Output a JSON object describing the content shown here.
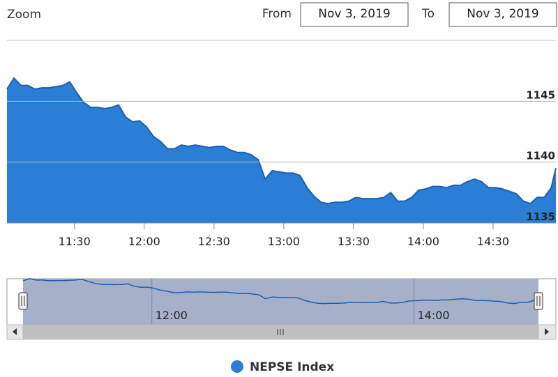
{
  "range_selector": {
    "zoom_label": "Zoom",
    "from_label": "From",
    "from_date": "Nov 3, 2019",
    "to_label": "To",
    "to_date": "Nov 3, 2019"
  },
  "chart_data": {
    "type": "area",
    "x": [
      661,
      664,
      667,
      670,
      673,
      676,
      679,
      682,
      685,
      688,
      691,
      694,
      697,
      700,
      703,
      706,
      709,
      712,
      715,
      718,
      721,
      724,
      727,
      730,
      733,
      736,
      739,
      742,
      745,
      748,
      751,
      754,
      757,
      760,
      763,
      766,
      769,
      772,
      775,
      778,
      781,
      784,
      787,
      790,
      793,
      796,
      799,
      802,
      805,
      808,
      811,
      814,
      817,
      820,
      823,
      826,
      829,
      832,
      835,
      838,
      841,
      844,
      847,
      850,
      853,
      856,
      859,
      862,
      865,
      868,
      871,
      874,
      877,
      880,
      883,
      886,
      889,
      892,
      895,
      897
    ],
    "series": [
      {
        "name": "NEPSE Index",
        "color": "#2a7fd4",
        "line_color": "#1a5fb0",
        "values": [
          1146.0,
          1146.9,
          1146.3,
          1146.3,
          1146.0,
          1146.1,
          1146.1,
          1146.2,
          1146.3,
          1146.6,
          1145.7,
          1144.9,
          1144.5,
          1144.5,
          1144.4,
          1144.5,
          1144.7,
          1143.7,
          1143.3,
          1143.4,
          1142.9,
          1142.1,
          1141.7,
          1141.1,
          1141.1,
          1141.4,
          1141.3,
          1141.4,
          1141.3,
          1141.2,
          1141.3,
          1141.3,
          1141.0,
          1140.8,
          1140.8,
          1140.6,
          1140.2,
          1138.6,
          1139.3,
          1139.2,
          1139.1,
          1139.1,
          1138.9,
          1137.9,
          1137.2,
          1136.7,
          1136.6,
          1136.7,
          1136.7,
          1136.8,
          1137.1,
          1137.0,
          1137.0,
          1137.0,
          1137.1,
          1137.5,
          1136.8,
          1136.8,
          1137.1,
          1137.7,
          1137.8,
          1138.0,
          1138.0,
          1137.9,
          1138.1,
          1138.1,
          1138.4,
          1138.6,
          1138.4,
          1137.9,
          1137.9,
          1137.8,
          1137.6,
          1137.4,
          1136.8,
          1136.6,
          1137.1,
          1137.1,
          1137.9,
          1139.5
        ]
      }
    ],
    "xlim": [
      661,
      897
    ],
    "xticks": [
      {
        "value": 690,
        "label": "11:30"
      },
      {
        "value": 720,
        "label": "12:00"
      },
      {
        "value": 750,
        "label": "12:30"
      },
      {
        "value": 780,
        "label": "13:00"
      },
      {
        "value": 810,
        "label": "13:30"
      },
      {
        "value": 840,
        "label": "14:00"
      },
      {
        "value": 870,
        "label": "14:30"
      }
    ],
    "ylim": [
      1135,
      1150
    ],
    "yticks": [
      1135,
      1140,
      1145
    ],
    "grid": true,
    "navigator": {
      "xticks": [
        {
          "value": 720,
          "label": "12:00"
        },
        {
          "value": 840,
          "label": "14:00"
        }
      ]
    }
  }
}
